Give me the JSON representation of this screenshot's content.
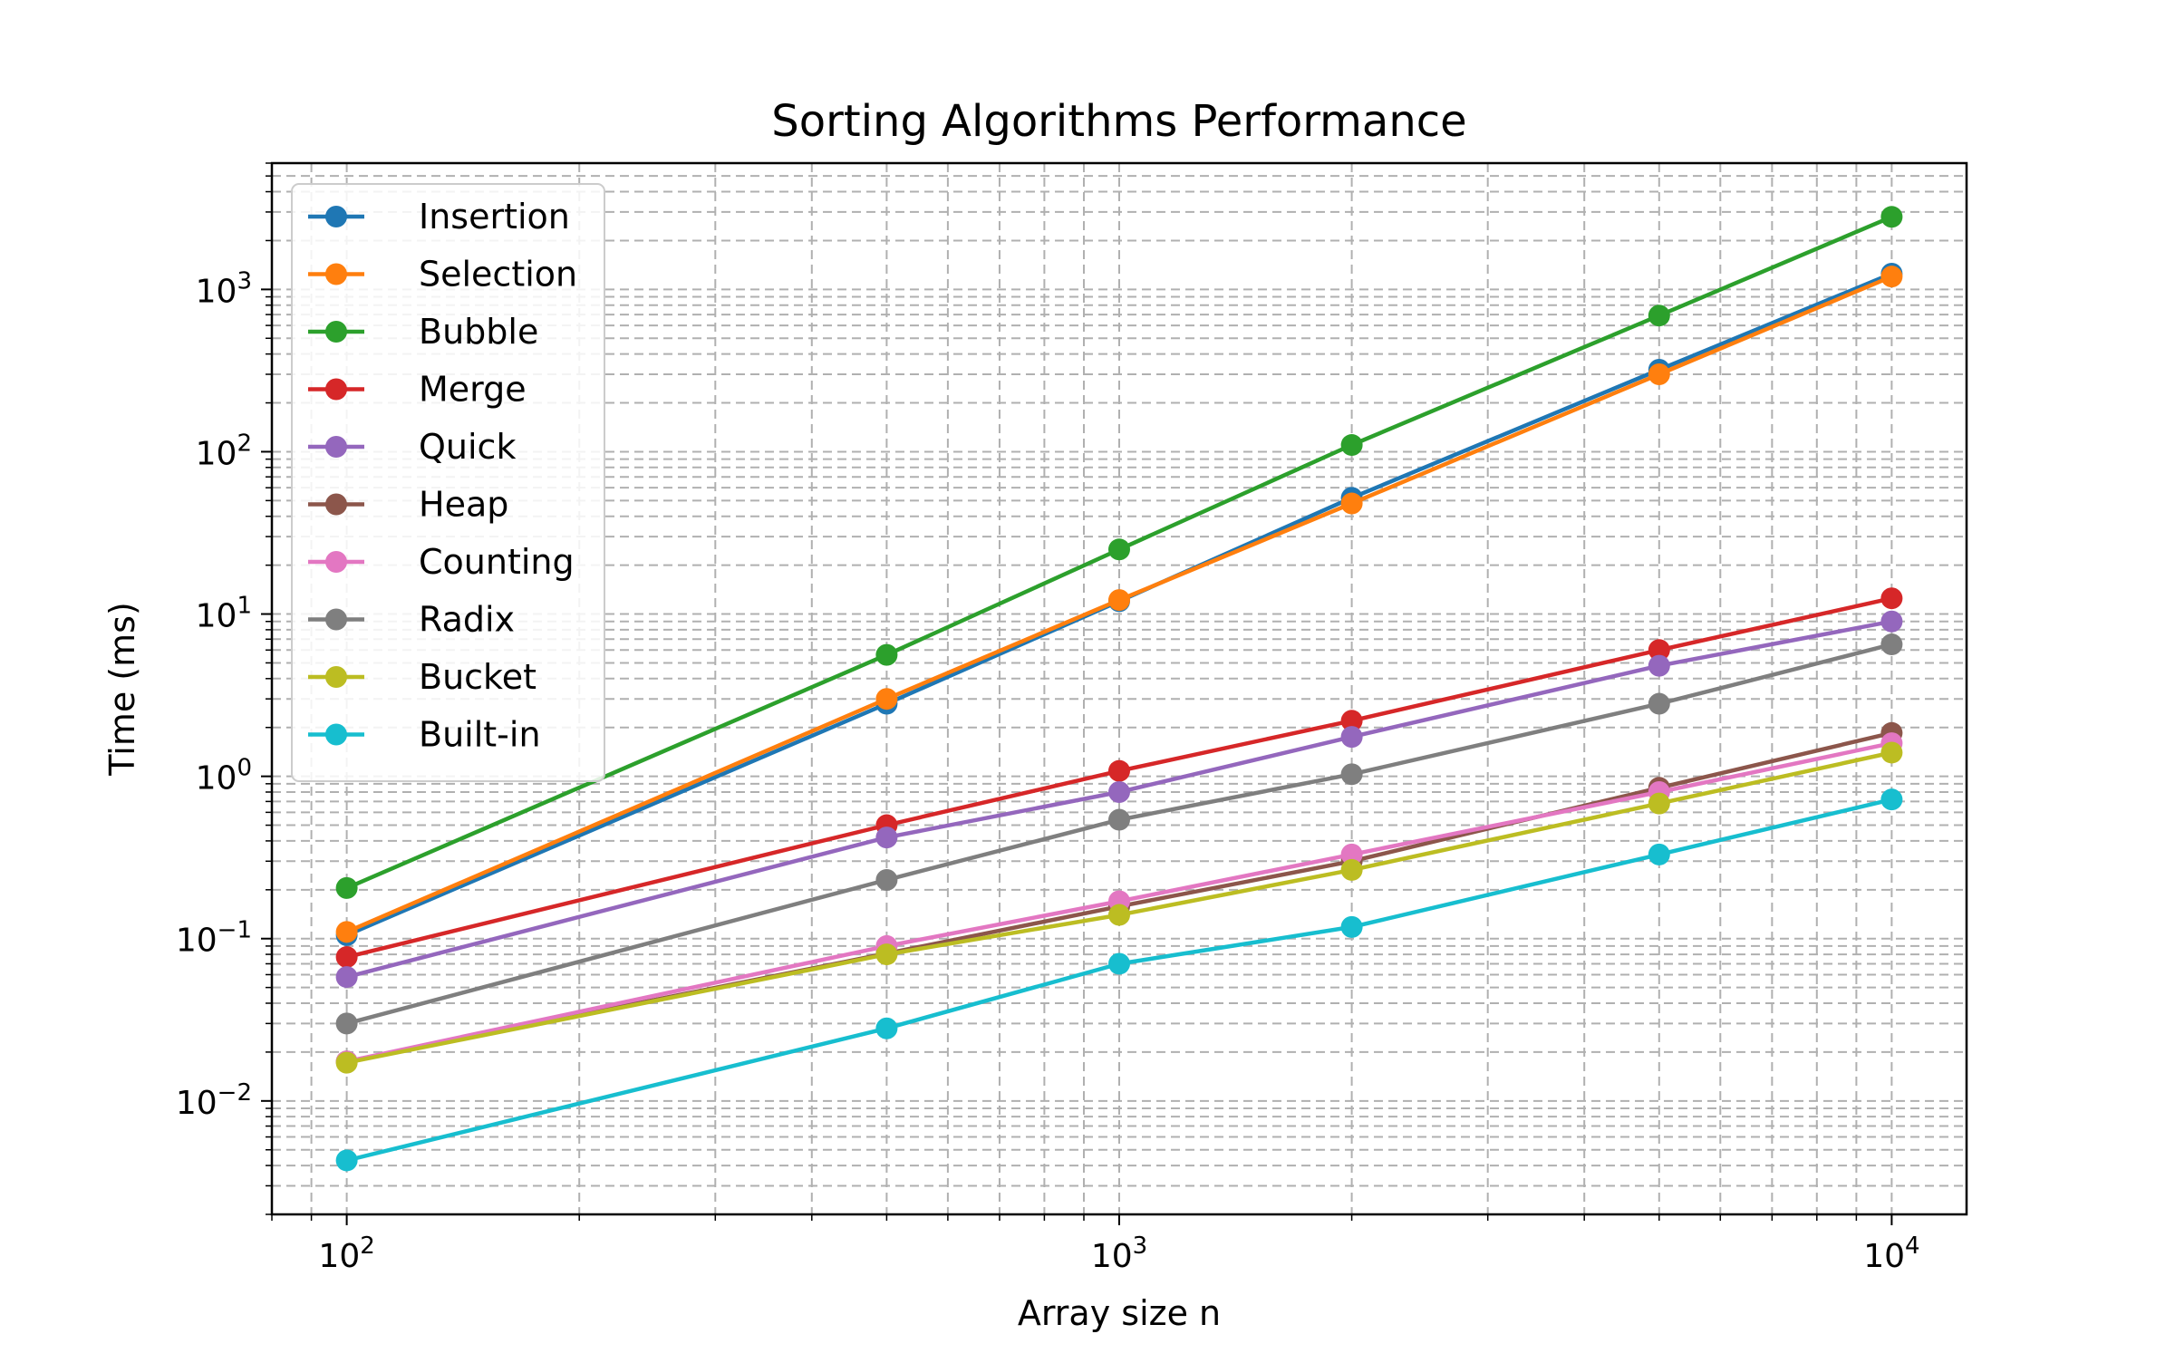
{
  "chart_data": {
    "type": "line",
    "title": "Sorting Algorithms Performance",
    "xlabel": "Array size n",
    "ylabel": "Time (ms)",
    "xscale": "log",
    "yscale": "log",
    "xlim": [
      80,
      12500
    ],
    "ylim": [
      0.002,
      6000
    ],
    "grid": true,
    "legend_position": "top-left",
    "x": [
      100,
      500,
      1000,
      2000,
      5000,
      10000
    ],
    "x_ticks": [
      {
        "value": 100,
        "base": "10",
        "exp": "2"
      },
      {
        "value": 1000,
        "base": "10",
        "exp": "3"
      },
      {
        "value": 10000,
        "base": "10",
        "exp": "4"
      }
    ],
    "y_ticks": [
      {
        "value": 0.01,
        "base": "10",
        "exp": "−2"
      },
      {
        "value": 0.1,
        "base": "10",
        "exp": "−1"
      },
      {
        "value": 1,
        "base": "10",
        "exp": "0"
      },
      {
        "value": 10,
        "base": "10",
        "exp": "1"
      },
      {
        "value": 100,
        "base": "10",
        "exp": "2"
      },
      {
        "value": 1000,
        "base": "10",
        "exp": "3"
      }
    ],
    "series": [
      {
        "name": "Insertion",
        "color": "#1f77b4",
        "values": [
          0.105,
          2.8,
          12.0,
          52,
          320,
          1250
        ]
      },
      {
        "name": "Selection",
        "color": "#ff7f0e",
        "values": [
          0.11,
          3.0,
          12.2,
          48,
          300,
          1200
        ]
      },
      {
        "name": "Bubble",
        "color": "#2ca02c",
        "values": [
          0.205,
          5.6,
          25,
          110,
          690,
          2800
        ]
      },
      {
        "name": "Merge",
        "color": "#d62728",
        "values": [
          0.077,
          0.5,
          1.08,
          2.2,
          6.0,
          12.5
        ]
      },
      {
        "name": "Quick",
        "color": "#9467bd",
        "values": [
          0.058,
          0.42,
          0.8,
          1.75,
          4.8,
          9.0
        ]
      },
      {
        "name": "Heap",
        "color": "#8c564b",
        "values": [
          0.0175,
          0.081,
          0.158,
          0.3,
          0.85,
          1.85
        ]
      },
      {
        "name": "Counting",
        "color": "#e377c2",
        "values": [
          0.0175,
          0.09,
          0.17,
          0.33,
          0.8,
          1.6
        ]
      },
      {
        "name": "Radix",
        "color": "#7f7f7f",
        "values": [
          0.03,
          0.23,
          0.54,
          1.03,
          2.8,
          6.5
        ]
      },
      {
        "name": "Bucket",
        "color": "#bcbd22",
        "values": [
          0.0172,
          0.08,
          0.14,
          0.265,
          0.68,
          1.4
        ]
      },
      {
        "name": "Built-in",
        "color": "#17becf",
        "values": [
          0.0043,
          0.028,
          0.07,
          0.118,
          0.33,
          0.72
        ]
      }
    ]
  }
}
